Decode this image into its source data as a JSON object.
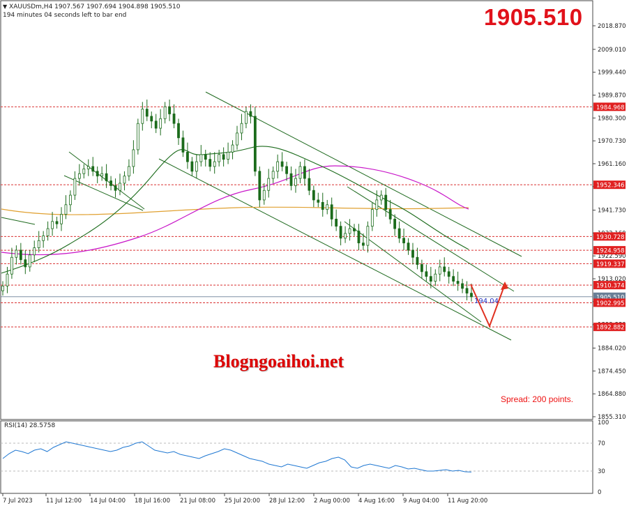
{
  "header": {
    "symbol_line": "XAUUSDm,H4  1907.567 1907.694 1904.898 1905.510",
    "countdown": "194 minutes 04 seconds left to bar end"
  },
  "big_price": "1905.510",
  "watermark": "Blogngoaihoi.net",
  "spread": "Spread: 200 points.",
  "price_axis": [
    "2018.870",
    "2009.010",
    "1999.440",
    "1989.870",
    "1980.300",
    "1970.730",
    "1961.160",
    "1951.590",
    "1941.730",
    "1932.160",
    "1922.590",
    "1913.020",
    "1903.450",
    "1893.880",
    "1884.020",
    "1874.450",
    "1864.880",
    "1855.310"
  ],
  "level_tags": [
    {
      "label": "1984.968",
      "color": "#e02020"
    },
    {
      "label": "1952.346",
      "color": "#e02020"
    },
    {
      "label": "1930.728",
      "color": "#e02020"
    },
    {
      "label": "1924.958",
      "color": "#e02020"
    },
    {
      "label": "1919.337",
      "color": "#e02020"
    },
    {
      "label": "1910.374",
      "color": "#e02020"
    },
    {
      "label": "1905.510",
      "color": "#6a7f96"
    },
    {
      "label": "1902.995",
      "color": "#e02020"
    },
    {
      "label": "1892.882",
      "color": "#e02020"
    }
  ],
  "forecast_label": "194.04",
  "rsi": {
    "title": "RSI(14) 28.5758",
    "levels": [
      "70",
      "30",
      "0"
    ],
    "extra_level_100": "100"
  },
  "time_axis": [
    "7 Jul 2023",
    "11 Jul 12:00",
    "14 Jul 04:00",
    "18 Jul 16:00",
    "21 Jul 08:00",
    "25 Jul 20:00",
    "28 Jul 12:00",
    "2 Aug 00:00",
    "4 Aug 16:00",
    "9 Aug 04:00",
    "11 Aug 20:00"
  ],
  "colors": {
    "candle": "#1b6b1b",
    "ma_fast": "#1a6a1a",
    "ma_mid": "#c814c8",
    "ma_slow": "#e0a030",
    "level_line": "#d93030",
    "rsi_line": "#1e77d2",
    "arrow": "#e03020"
  }
}
